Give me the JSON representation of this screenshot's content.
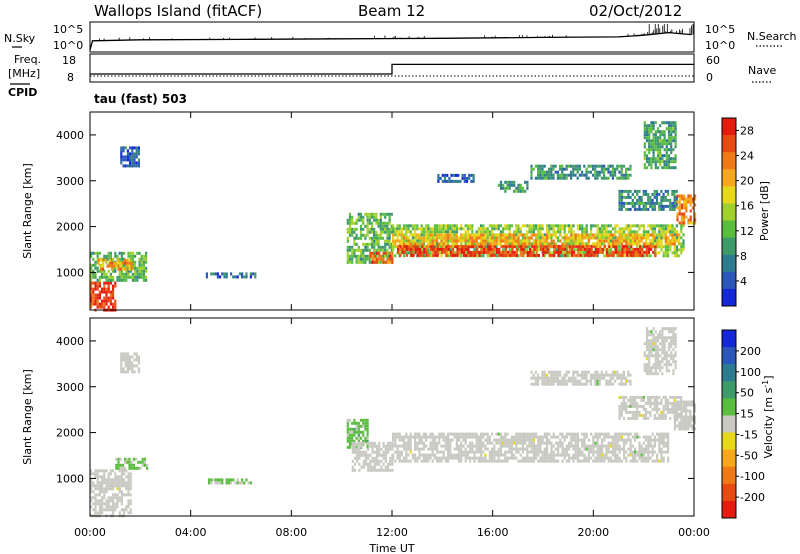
{
  "header": {
    "station": "Wallops Island (fitACF)",
    "beam": "Beam 12",
    "date": "02/Oct/2012"
  },
  "panels": {
    "nsky_label": "N.Sky",
    "nsearch_label": "N.Search",
    "freq_label_1": "Freq.",
    "freq_label_2": "[MHz]",
    "cpid_label": "CPID",
    "nave_label": "Nave",
    "cpid_text": "tau (fast) 503",
    "nsky_ticks": [
      "10^5",
      "10^0"
    ],
    "nsearch_ticks": [
      "10^5",
      "10^0"
    ],
    "freq_ticks": [
      "18",
      "8"
    ],
    "nave_ticks": [
      "60",
      "0"
    ]
  },
  "colors": {
    "power": [
      "#1428d8",
      "#2b57b8",
      "#2e7a8e",
      "#3f9a6a",
      "#5abd40",
      "#9fd02c",
      "#e8d81a",
      "#f6a81c",
      "#f07a18",
      "#e84a14",
      "#e41c10"
    ],
    "velocity": [
      "#1428d8",
      "#2b57b8",
      "#2e7a8e",
      "#3f9a6a",
      "#5abd40",
      "#c9c9c2",
      "#e8d81a",
      "#f6a81c",
      "#f07a18",
      "#e84a14",
      "#e41c10"
    ],
    "ground_scatter": "#c9c9c2"
  },
  "chart_data": [
    {
      "type": "line",
      "title": "N.Sky / N.Search",
      "ylabel": "N.Sky",
      "y2label": "N.Search",
      "yscale": "log",
      "ylim": [
        1,
        100000
      ],
      "yticks": [
        "10^0",
        "10^5"
      ],
      "xlim": [
        0,
        24
      ],
      "x": [
        0,
        0.1,
        2,
        6,
        10,
        14,
        18,
        21,
        22,
        23,
        23.9
      ],
      "series": [
        {
          "name": "N.Sky",
          "values": [
            1,
            60,
            90,
            110,
            140,
            180,
            260,
            330,
            700,
            2200,
            900
          ]
        }
      ]
    },
    {
      "type": "line",
      "title": "Freq. [MHz] / Nave",
      "ylabel": "Freq. [MHz]",
      "y2label": "Nave",
      "ylim": [
        8,
        18
      ],
      "yticks": [
        8,
        18
      ],
      "y2lim": [
        0,
        60
      ],
      "y2ticks": [
        0,
        60
      ],
      "xlim": [
        0,
        24
      ],
      "series": [
        {
          "name": "Freq. [MHz]",
          "x": [
            0,
            12,
            12,
            24
          ],
          "values": [
            10.5,
            10.5,
            14.5,
            14.5
          ]
        },
        {
          "name": "Nave",
          "x": [
            0,
            24
          ],
          "values": [
            10,
            10
          ]
        }
      ]
    },
    {
      "type": "heatmap",
      "panel": "power",
      "ylabel": "Slant Range [km]",
      "xlabel": "",
      "xlim": [
        0,
        24
      ],
      "ylim": [
        180,
        4500
      ],
      "yticks": [
        1000,
        2000,
        3000,
        4000
      ],
      "colorbar": {
        "label": "Power [dB]",
        "range": [
          0,
          30
        ],
        "ticks": [
          4,
          8,
          12,
          16,
          20,
          24,
          28
        ]
      },
      "regions": [
        {
          "t": [
            0.0,
            1.0
          ],
          "r": [
            200,
            800
          ],
          "value": 27
        },
        {
          "t": [
            0.0,
            2.2
          ],
          "r": [
            800,
            1450
          ],
          "value": 12
        },
        {
          "t": [
            0.3,
            1.7
          ],
          "r": [
            1050,
            1300
          ],
          "value": 21
        },
        {
          "t": [
            4.6,
            6.6
          ],
          "r": [
            900,
            1000
          ],
          "value": 6
        },
        {
          "t": [
            1.2,
            1.9
          ],
          "r": [
            3300,
            3750
          ],
          "value": 5
        },
        {
          "t": [
            10.2,
            12.0
          ],
          "r": [
            1200,
            2300
          ],
          "value": 12
        },
        {
          "t": [
            11.1,
            12.0
          ],
          "r": [
            1200,
            1450
          ],
          "value": 25
        },
        {
          "t": [
            12.0,
            23.6
          ],
          "r": [
            1350,
            2050
          ],
          "value": 14
        },
        {
          "t": [
            12.2,
            22.5
          ],
          "r": [
            1400,
            1600
          ],
          "value": 27
        },
        {
          "t": [
            12.0,
            23.4
          ],
          "r": [
            1650,
            1850
          ],
          "value": 20
        },
        {
          "t": [
            17.5,
            21.5
          ],
          "r": [
            3050,
            3350
          ],
          "value": 9
        },
        {
          "t": [
            16.2,
            17.4
          ],
          "r": [
            2800,
            3000
          ],
          "value": 10
        },
        {
          "t": [
            13.8,
            15.2
          ],
          "r": [
            3000,
            3150
          ],
          "value": 5
        },
        {
          "t": [
            21.0,
            23.3
          ],
          "r": [
            2400,
            2800
          ],
          "value": 8
        },
        {
          "t": [
            22.0,
            23.3
          ],
          "r": [
            3300,
            4300
          ],
          "value": 10
        },
        {
          "t": [
            23.3,
            24.0
          ],
          "r": [
            2100,
            2700
          ],
          "value": 22
        }
      ]
    },
    {
      "type": "heatmap",
      "panel": "velocity",
      "ylabel": "Slant Range [km]",
      "xlabel": "Time UT",
      "xlim": [
        0,
        24
      ],
      "xticks": [
        "00:00",
        "04:00",
        "08:00",
        "12:00",
        "16:00",
        "20:00",
        "00:00"
      ],
      "ylim": [
        180,
        4500
      ],
      "yticks": [
        1000,
        2000,
        3000,
        4000
      ],
      "colorbar": {
        "label": "Velocity [m s^-1]",
        "range": [
          -250,
          250
        ],
        "ticks": [
          200,
          100,
          50,
          15,
          -15,
          -50,
          -100,
          -200
        ]
      },
      "regions": [
        {
          "t": [
            0.0,
            1.6
          ],
          "r": [
            200,
            1200
          ],
          "value": 0
        },
        {
          "t": [
            1.0,
            2.3
          ],
          "r": [
            1200,
            1450
          ],
          "value": 30
        },
        {
          "t": [
            1.2,
            1.9
          ],
          "r": [
            3300,
            3750
          ],
          "value": 0
        },
        {
          "t": [
            4.6,
            6.4
          ],
          "r": [
            900,
            1000
          ],
          "value": 35
        },
        {
          "t": [
            10.2,
            11.0
          ],
          "r": [
            1650,
            2300
          ],
          "value": 40
        },
        {
          "t": [
            10.4,
            12.0
          ],
          "r": [
            1200,
            1800
          ],
          "value": 0
        },
        {
          "t": [
            12.0,
            23.0
          ],
          "r": [
            1350,
            2000
          ],
          "value": 0
        },
        {
          "t": [
            17.5,
            21.5
          ],
          "r": [
            3050,
            3350
          ],
          "value": 0
        },
        {
          "t": [
            21.0,
            23.5
          ],
          "r": [
            2300,
            2800
          ],
          "value": 0
        },
        {
          "t": [
            22.0,
            23.3
          ],
          "r": [
            3300,
            4300
          ],
          "value": 0
        },
        {
          "t": [
            23.2,
            24.0
          ],
          "r": [
            2100,
            2700
          ],
          "value": 0
        }
      ]
    }
  ]
}
